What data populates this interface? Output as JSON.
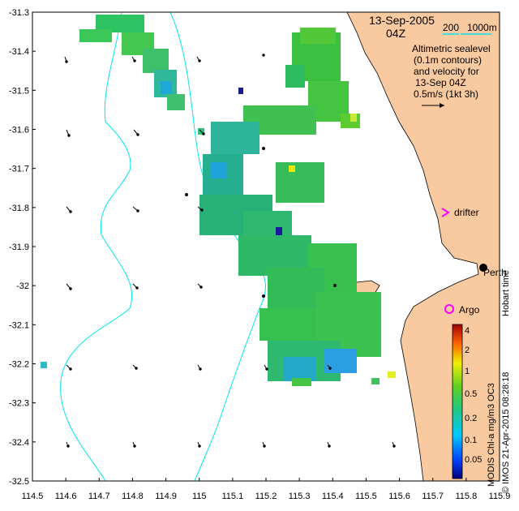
{
  "map": {
    "title_date": "13-Sep-2005",
    "title_time": "04Z",
    "scale_label_200": "200",
    "scale_label_1000": "1000m",
    "legend_lines": [
      "Altimetric sealevel",
      "(0.1m contours)",
      "and velocity for",
      "13-Sep 04Z",
      "0.5m/s (1kt 3h)"
    ],
    "drifter_label": "drifter",
    "argo_label": "Argo",
    "perth_label": "Perth",
    "hobart_label": "Hobart time",
    "product_label": "MODIS Chl-a mg/m3 OC3",
    "credit_label": "© IMOS 21-Apr-2015 08:28:18",
    "colors": {
      "land": "#f9c9a0",
      "coast": "#000000",
      "bathymetry": "#00e5ee",
      "drifter": "#ff00ff",
      "argo": "#ff00ff"
    }
  },
  "chart_data": {
    "type": "heatmap",
    "x_ticks": [
      "114.5",
      "114.6",
      "114.7",
      "114.8",
      "114.9",
      "115",
      "115.1",
      "115.2",
      "115.3",
      "115.4",
      "115.5",
      "115.6",
      "115.7",
      "115.8",
      "115.9"
    ],
    "y_ticks": [
      "-31.3",
      "-31.4",
      "-31.5",
      "-31.6",
      "-31.7",
      "-31.8",
      "-31.9",
      "-32",
      "-32.1",
      "-32.2",
      "-32.3",
      "-32.4",
      "-32.5"
    ],
    "xlim": [
      114.5,
      115.9
    ],
    "ylim": [
      -32.5,
      -31.3
    ],
    "colorbar": {
      "label": "MODIS Chl-a mg/m3 OC3",
      "ticks": [
        "4",
        "2",
        "1",
        "0.5",
        "0.2",
        "0.1",
        "0.05"
      ],
      "scale": "log"
    }
  }
}
